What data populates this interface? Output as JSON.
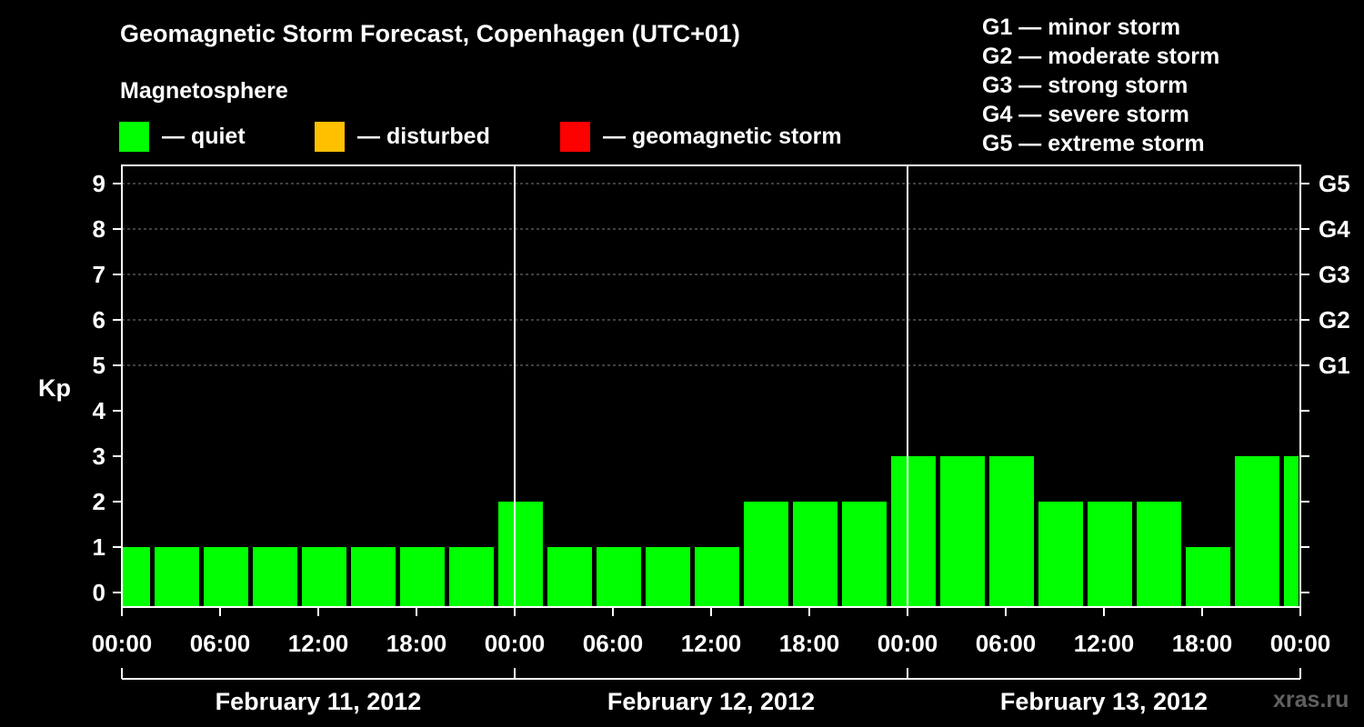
{
  "header": {
    "title": "Geomagnetic Storm Forecast, Copenhagen (UTC+01)",
    "subtitle": "Magnetosphere"
  },
  "legend": [
    {
      "label": "— quiet",
      "color": "#00ff00"
    },
    {
      "label": "— disturbed",
      "color": "#ffc000"
    },
    {
      "label": "— geomagnetic storm",
      "color": "#ff0000"
    }
  ],
  "storm_levels": [
    "G1 — minor storm",
    "G2 — moderate storm",
    "G3 — strong storm",
    "G4 — severe storm",
    "G5 — extreme storm"
  ],
  "watermark": "xras.ru",
  "chart_data": {
    "type": "bar",
    "ylabel": "Kp",
    "ylim": [
      0,
      9
    ],
    "yticks": [
      "0",
      "1",
      "2",
      "3",
      "4",
      "5",
      "6",
      "7",
      "8",
      "9"
    ],
    "right_ticks": [
      {
        "y": 5,
        "label": "G1"
      },
      {
        "y": 6,
        "label": "G2"
      },
      {
        "y": 7,
        "label": "G3"
      },
      {
        "y": 8,
        "label": "G4"
      },
      {
        "y": 9,
        "label": "G5"
      }
    ],
    "grid": "dashed at Kp 5–9",
    "x_tick_labels": [
      "00:00",
      "06:00",
      "12:00",
      "18:00",
      "00:00",
      "06:00",
      "12:00",
      "18:00",
      "00:00",
      "06:00",
      "12:00",
      "18:00",
      "00:00"
    ],
    "days": [
      "February 11, 2012",
      "February 12, 2012",
      "February 13, 2012"
    ],
    "bar_interval_hours": 3,
    "values": [
      1,
      1,
      1,
      1,
      1,
      1,
      1,
      1,
      2,
      1,
      1,
      1,
      1,
      2,
      2,
      2,
      3,
      3,
      3,
      2,
      2,
      2,
      1,
      3,
      3
    ],
    "bar_color": "#00ff00"
  }
}
